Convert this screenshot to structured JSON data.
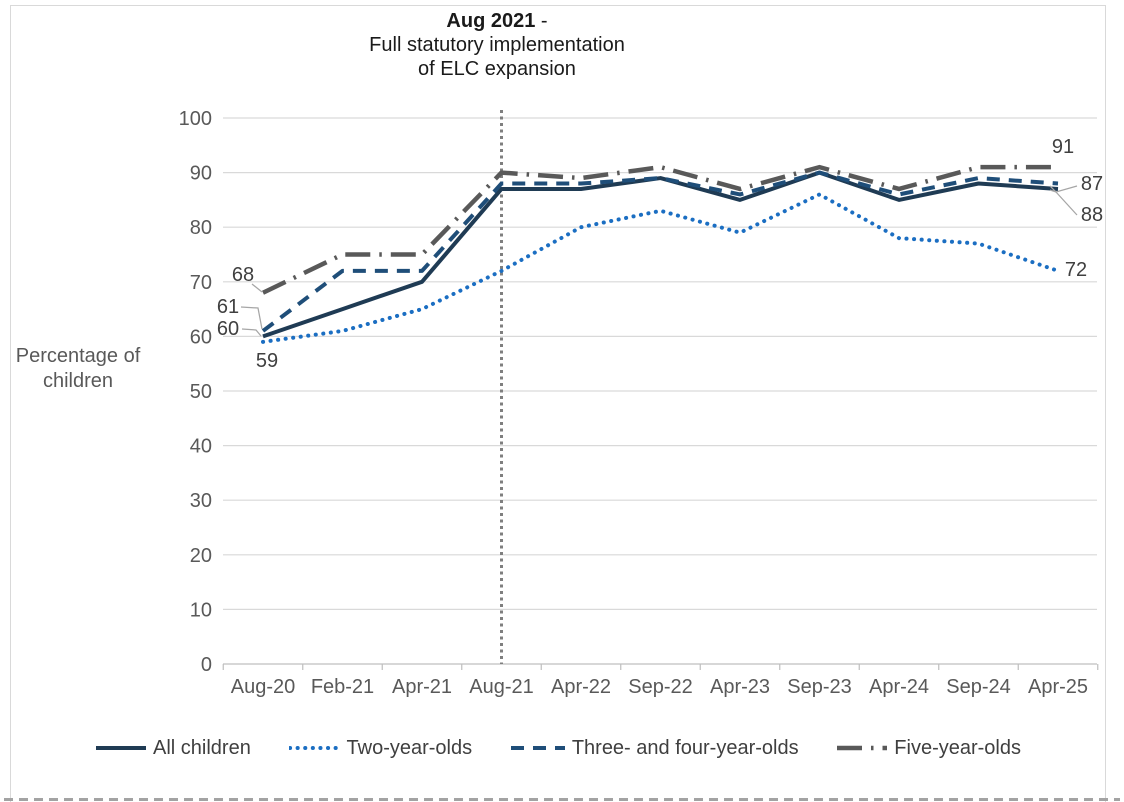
{
  "title": {
    "bold": "Aug 2021",
    "suffix": " -",
    "line2": "Full statutory implementation",
    "line3": "of ELC expansion"
  },
  "y_axis_title": {
    "line1": "Percentage of",
    "line2": "children"
  },
  "chart_data": {
    "type": "line",
    "title": "Aug 2021 - Full statutory implementation of ELC expansion",
    "ylabel": "Percentage of children",
    "xlabel": "",
    "ylim": [
      0,
      100
    ],
    "y_tick_labels": [
      "0",
      "10",
      "20",
      "30",
      "40",
      "50",
      "60",
      "70",
      "80",
      "90",
      "100"
    ],
    "grid": true,
    "legend_position": "bottom",
    "categories": [
      "Aug-20",
      "Feb-21",
      "Apr-21",
      "Aug-21",
      "Apr-22",
      "Sep-22",
      "Apr-23",
      "Sep-23",
      "Apr-24",
      "Sep-24",
      "Apr-25"
    ],
    "event_marker": {
      "category": "Aug-21",
      "style": "dotted",
      "color": "#7F7F7F"
    },
    "series": [
      {
        "name": "All children",
        "style": "solid",
        "color": "#1F3B54",
        "values": [
          60,
          65,
          70,
          87,
          87,
          89,
          85,
          90,
          85,
          88,
          87
        ],
        "start_label": "60",
        "end_label": "87"
      },
      {
        "name": "Two-year-olds",
        "style": "dotted",
        "color": "#1B6EC2",
        "values": [
          59,
          61,
          65,
          72,
          80,
          83,
          79,
          86,
          78,
          77,
          72
        ],
        "start_label": "59",
        "end_label": "72"
      },
      {
        "name": "Three- and four-year-olds",
        "style": "dashed",
        "color": "#1F4E79",
        "values": [
          61,
          72,
          72,
          88,
          88,
          89,
          86,
          90,
          86,
          89,
          88
        ],
        "start_label": "61",
        "end_label": "88"
      },
      {
        "name": "Five-year-olds",
        "style": "dash-dot",
        "color": "#595959",
        "values": [
          68,
          75,
          75,
          90,
          89,
          91,
          87,
          91,
          87,
          91,
          91
        ],
        "start_label": "68",
        "end_label": "91"
      }
    ],
    "colors": {
      "gridline": "#D9D9D9",
      "axis": "#BFBFBF",
      "tick_text": "#595959",
      "data_label_text": "#404040",
      "leader_line": "#A6A6A6",
      "page_break_dash": "#A3A3A3"
    }
  }
}
